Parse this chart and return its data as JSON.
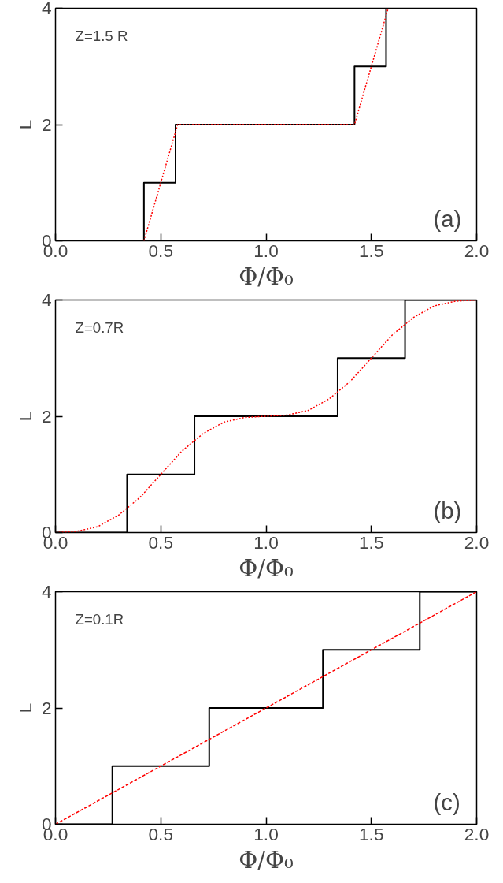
{
  "chart_data": [
    {
      "type": "line",
      "xlabel": "Φ/Φ₀",
      "ylabel": "L",
      "annotations": [
        "Z=1.5 R",
        "(a)"
      ],
      "xlim": [
        0,
        2
      ],
      "ylim": [
        0,
        4
      ],
      "xticks": [
        {
          "value": 0,
          "label": "0.0"
        },
        {
          "value": 0.5,
          "label": "0.5"
        },
        {
          "value": 1,
          "label": "1.0"
        },
        {
          "value": 1.5,
          "label": "1.5"
        },
        {
          "value": 2,
          "label": "2.0"
        }
      ],
      "yticks": [
        0,
        2,
        4
      ],
      "grid": false,
      "series": [
        {
          "type": "step",
          "color": "#000000",
          "line_style": "solid",
          "x": [
            0,
            0.42,
            0.57,
            1.42,
            1.57,
            2.0
          ],
          "values": [
            0,
            1,
            2,
            3,
            4,
            4
          ]
        },
        {
          "color": "#ff0000",
          "line_style": "dotted",
          "x": [
            0.42,
            0.58,
            1.42,
            1.58
          ],
          "values": [
            0,
            2,
            2,
            4
          ]
        }
      ]
    },
    {
      "type": "line",
      "xlabel": "Φ/Φ₀",
      "ylabel": "L",
      "annotations": [
        "Z=0.7R",
        "(b)"
      ],
      "xlim": [
        0,
        2
      ],
      "ylim": [
        0,
        4
      ],
      "xticks": [
        {
          "value": 0,
          "label": "0.0"
        },
        {
          "value": 0.5,
          "label": "0.5"
        },
        {
          "value": 1,
          "label": "1.0"
        },
        {
          "value": 1.5,
          "label": "1.5"
        },
        {
          "value": 2,
          "label": "2.0"
        }
      ],
      "yticks": [
        0,
        2,
        4
      ],
      "grid": false,
      "series": [
        {
          "type": "step",
          "color": "#000000",
          "line_style": "solid",
          "x": [
            0,
            0.34,
            0.66,
            1.34,
            1.66,
            2.0
          ],
          "values": [
            0,
            1,
            2,
            3,
            4,
            4
          ]
        },
        {
          "color": "#ff0000",
          "line_style": "dotted",
          "x": [
            0,
            0.1,
            0.2,
            0.3,
            0.4,
            0.5,
            0.6,
            0.7,
            0.8,
            0.9,
            1.0,
            1.1,
            1.2,
            1.3,
            1.4,
            1.5,
            1.6,
            1.7,
            1.8,
            1.9,
            2.0
          ],
          "values": [
            0,
            0.02,
            0.1,
            0.3,
            0.6,
            1.0,
            1.4,
            1.7,
            1.9,
            1.98,
            2.0,
            2.02,
            2.1,
            2.3,
            2.6,
            3.0,
            3.4,
            3.7,
            3.9,
            3.98,
            4.0
          ]
        }
      ]
    },
    {
      "type": "line",
      "xlabel": "Φ/Φ₀",
      "ylabel": "L",
      "annotations": [
        "Z=0.1R",
        "(c)"
      ],
      "xlim": [
        0,
        2
      ],
      "ylim": [
        0,
        4
      ],
      "xticks": [
        {
          "value": 0,
          "label": "0.0"
        },
        {
          "value": 0.5,
          "label": "0.5"
        },
        {
          "value": 1,
          "label": "1.0"
        },
        {
          "value": 1.5,
          "label": "1.5"
        },
        {
          "value": 2,
          "label": "2.0"
        }
      ],
      "yticks": [
        0,
        2,
        4
      ],
      "grid": false,
      "series": [
        {
          "type": "step",
          "color": "#000000",
          "line_style": "solid",
          "x": [
            0,
            0.27,
            0.73,
            1.27,
            1.73,
            2.0
          ],
          "values": [
            0,
            1,
            2,
            3,
            4,
            4
          ]
        },
        {
          "color": "#ff0000",
          "line_style": "dashed",
          "x": [
            0,
            2.0
          ],
          "values": [
            0,
            4
          ]
        }
      ]
    }
  ]
}
